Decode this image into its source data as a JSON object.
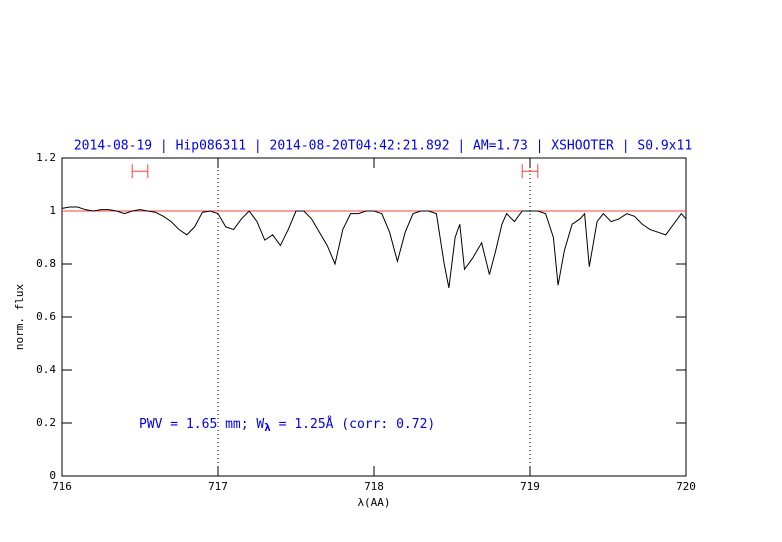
{
  "chart_data": {
    "type": "line",
    "title": "2014-08-19 | Hip086311 | 2014-08-20T04:42:21.892 | AM=1.73 | XSHOOTER | S0.9x11",
    "xlabel": "λ(AA)",
    "ylabel": "norm. flux",
    "annotation": [
      "PWV = 1.65 mm; W",
      "λ",
      " = 1.25Å (corr: 0.72)"
    ],
    "xlim": [
      716,
      720
    ],
    "ylim": [
      0,
      1.2
    ],
    "xticks": [
      716,
      717,
      718,
      719,
      720
    ],
    "yticks": [
      0,
      0.2,
      0.4,
      0.6,
      0.8,
      1,
      1.2
    ],
    "reference_line": {
      "value": 1,
      "color": "#ff4040"
    },
    "vlines": [
      717,
      719
    ],
    "ranges": {
      "color": "#ff4040",
      "y": 1.15,
      "spans": [
        [
          716.45,
          716.55
        ],
        [
          718.95,
          719.05
        ]
      ]
    },
    "series": [
      {
        "name": "flux",
        "color": "#000000",
        "x": [
          716.0,
          716.05,
          716.1,
          716.15,
          716.2,
          716.25,
          716.3,
          716.35,
          716.4,
          716.45,
          716.5,
          716.55,
          716.6,
          716.65,
          716.7,
          716.75,
          716.8,
          716.85,
          716.9,
          716.95,
          717.0,
          717.05,
          717.1,
          717.15,
          717.2,
          717.25,
          717.3,
          717.35,
          717.4,
          717.45,
          717.5,
          717.55,
          717.6,
          717.65,
          717.7,
          717.75,
          717.8,
          717.85,
          717.9,
          717.95,
          718.0,
          718.05,
          718.1,
          718.15,
          718.2,
          718.25,
          718.3,
          718.35,
          718.4,
          718.45,
          718.48,
          718.52,
          718.55,
          718.58,
          718.63,
          718.69,
          718.74,
          718.78,
          718.82,
          718.85,
          718.9,
          718.95,
          719.0,
          719.05,
          719.1,
          719.15,
          719.18,
          719.22,
          719.27,
          719.32,
          719.35,
          719.38,
          719.43,
          719.47,
          719.52,
          719.57,
          719.62,
          719.67,
          719.72,
          719.77,
          719.82,
          719.87,
          719.92,
          719.97,
          720.0
        ],
        "values": [
          1.01,
          1.015,
          1.015,
          1.005,
          1.0,
          1.005,
          1.005,
          1.0,
          0.99,
          1.0,
          1.005,
          1.0,
          0.995,
          0.98,
          0.96,
          0.93,
          0.91,
          0.94,
          0.995,
          1.0,
          0.99,
          0.94,
          0.93,
          0.97,
          1.0,
          0.96,
          0.89,
          0.91,
          0.87,
          0.93,
          1.0,
          1.0,
          0.97,
          0.92,
          0.87,
          0.8,
          0.93,
          0.99,
          0.99,
          1.0,
          1.0,
          0.99,
          0.92,
          0.81,
          0.92,
          0.99,
          1.0,
          1.0,
          0.99,
          0.8,
          0.71,
          0.9,
          0.95,
          0.78,
          0.82,
          0.88,
          0.76,
          0.85,
          0.95,
          0.99,
          0.96,
          1.0,
          1.0,
          1.0,
          0.99,
          0.9,
          0.72,
          0.85,
          0.95,
          0.97,
          0.99,
          0.79,
          0.96,
          0.99,
          0.96,
          0.97,
          0.99,
          0.98,
          0.95,
          0.93,
          0.92,
          0.91,
          0.95,
          0.99,
          0.97
        ]
      }
    ]
  }
}
